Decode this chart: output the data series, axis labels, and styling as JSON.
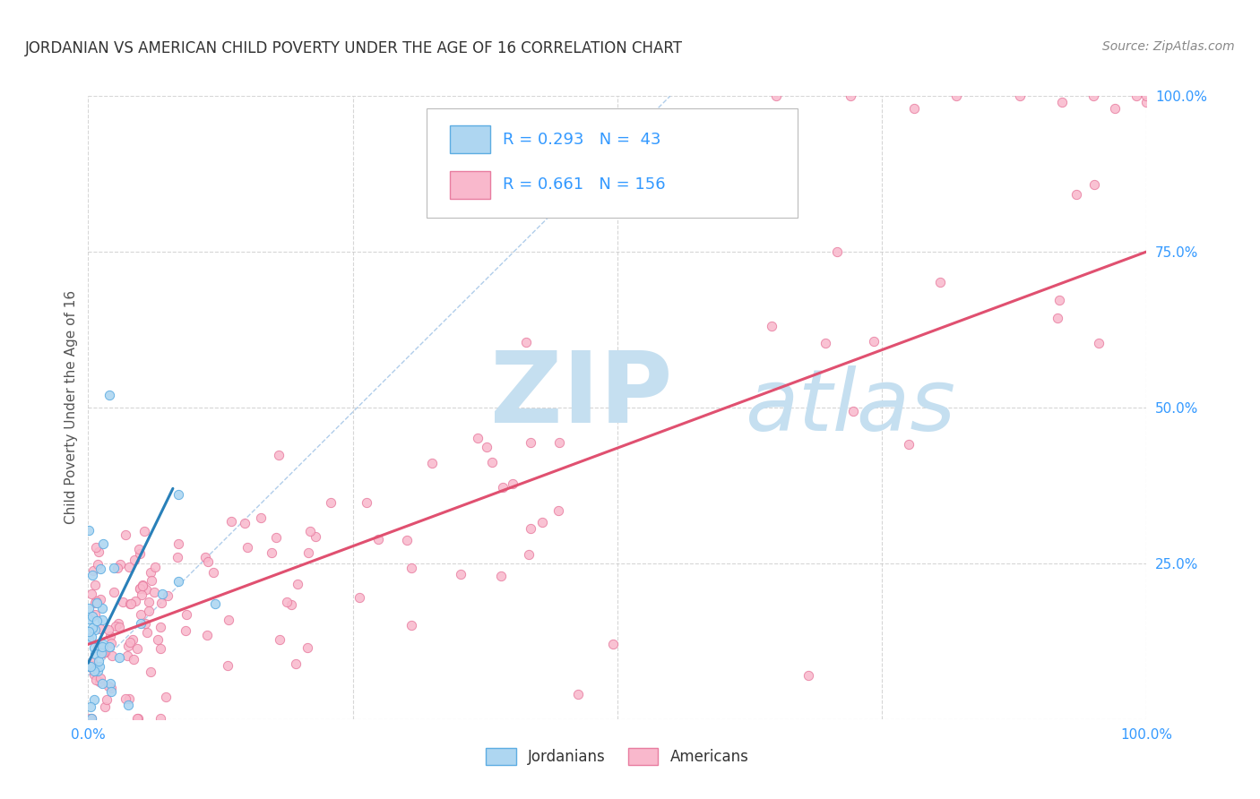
{
  "title": "JORDANIAN VS AMERICAN CHILD POVERTY UNDER THE AGE OF 16 CORRELATION CHART",
  "source": "Source: ZipAtlas.com",
  "ylabel": "Child Poverty Under the Age of 16",
  "xlim": [
    0,
    1
  ],
  "ylim": [
    0,
    1
  ],
  "jordanian_fill": "#aed6f1",
  "jordanian_edge": "#5dade2",
  "american_fill": "#f9b8cc",
  "american_edge": "#e87da0",
  "reg_jordanian_color": "#2980b9",
  "reg_american_color": "#e05070",
  "diag_color": "#a8c8e8",
  "grid_color": "#cccccc",
  "tick_color": "#3399ff",
  "title_color": "#333333",
  "source_color": "#888888",
  "ylabel_color": "#555555",
  "watermark_zip_color": "#c5dff0",
  "watermark_atlas_color": "#c5dff0",
  "background_color": "#ffffff",
  "title_fontsize": 12,
  "tick_fontsize": 11,
  "ylabel_fontsize": 11,
  "source_fontsize": 10,
  "legend_fontsize": 13,
  "scatter_size": 55,
  "reg_linewidth": 2.2,
  "diag_linewidth": 1.0
}
